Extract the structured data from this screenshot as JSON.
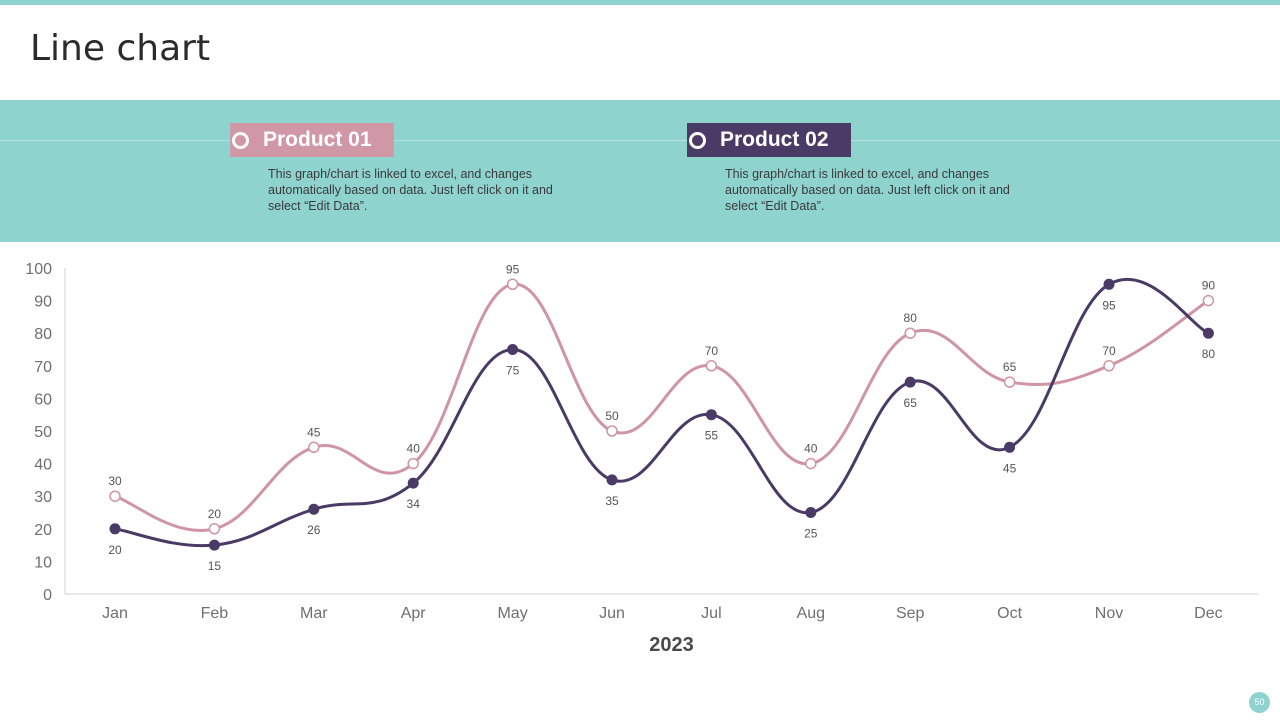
{
  "page": {
    "title": "Line chart",
    "page_number": "50"
  },
  "legend": [
    {
      "name": "Product 01",
      "color": "#d097a6",
      "description": "This graph/chart is linked to excel, and changes automatically based on data. Just left click on it and select “Edit Data”."
    },
    {
      "name": "Product 02",
      "color": "#4a3b66",
      "description": "This graph/chart is linked to excel, and changes automatically based on data. Just left click on it and select “Edit Data”."
    }
  ],
  "colors": {
    "accent": "#8fd3cf",
    "product_01": "#cf95a4",
    "product_02": "#4a3b66"
  },
  "chart_data": {
    "type": "line",
    "title": "",
    "categories": [
      "Jan",
      "Feb",
      "Mar",
      "Apr",
      "May",
      "Jun",
      "Jul",
      "Aug",
      "Sep",
      "Oct",
      "Nov",
      "Dec"
    ],
    "series": [
      {
        "name": "Product 01",
        "values": [
          30,
          20,
          45,
          40,
          95,
          50,
          70,
          40,
          80,
          65,
          70,
          90
        ],
        "label_position": "above"
      },
      {
        "name": "Product 02",
        "values": [
          20,
          15,
          26,
          34,
          75,
          35,
          55,
          25,
          65,
          45,
          95,
          80
        ],
        "label_position": "below"
      }
    ],
    "xlabel": "2023",
    "ylabel": "",
    "ylim": [
      0,
      100
    ],
    "yticks": [
      0,
      10,
      20,
      30,
      40,
      50,
      60,
      70,
      80,
      90,
      100
    ],
    "grid": false,
    "smooth": true
  }
}
